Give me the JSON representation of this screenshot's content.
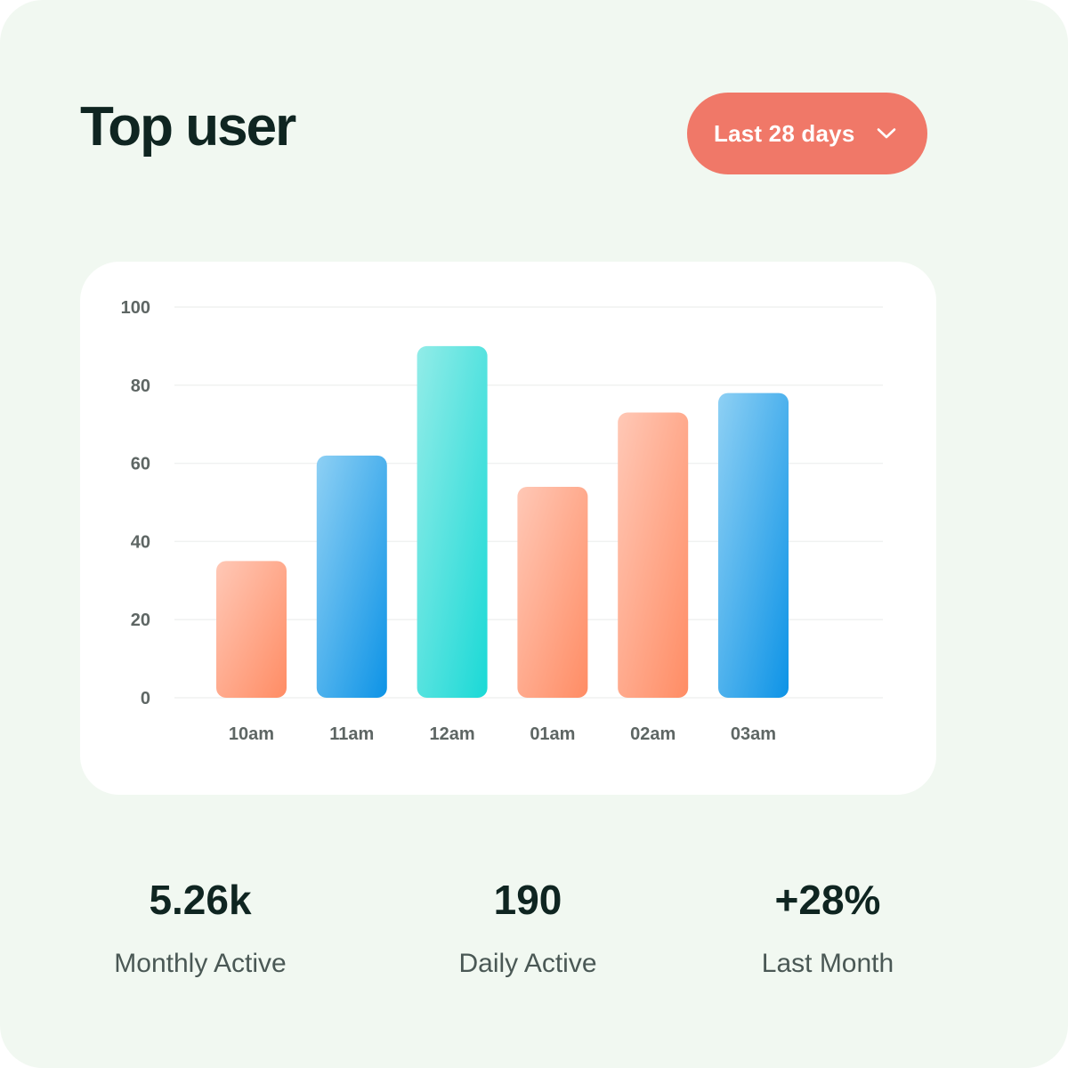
{
  "header": {
    "title": "Top user",
    "range_label": "Last 28 days"
  },
  "colors": {
    "card_bg": "#f1f8f1",
    "button": "#f07868",
    "orange_bar": [
      "#ffc8b6",
      "#ff8c64"
    ],
    "blue_bar": [
      "#8ed0f4",
      "#0d93e6"
    ],
    "teal_bar": [
      "#92ece8",
      "#1ad9d6"
    ]
  },
  "chart_data": {
    "type": "bar",
    "categories": [
      "10am",
      "11am",
      "12am",
      "01am",
      "02am",
      "03am"
    ],
    "values": [
      35,
      62,
      90,
      54,
      73,
      78
    ],
    "bar_colors": [
      "orange",
      "blue",
      "teal",
      "orange",
      "orange",
      "blue"
    ],
    "ylim": [
      0,
      100
    ],
    "yticks": [
      "0",
      "20",
      "40",
      "60",
      "80",
      "100"
    ],
    "grid": true
  },
  "stats": [
    {
      "value": "5.26k",
      "label": "Monthly Active"
    },
    {
      "value": "190",
      "label": "Daily Active"
    },
    {
      "value": "+28%",
      "label": "Last Month"
    }
  ]
}
